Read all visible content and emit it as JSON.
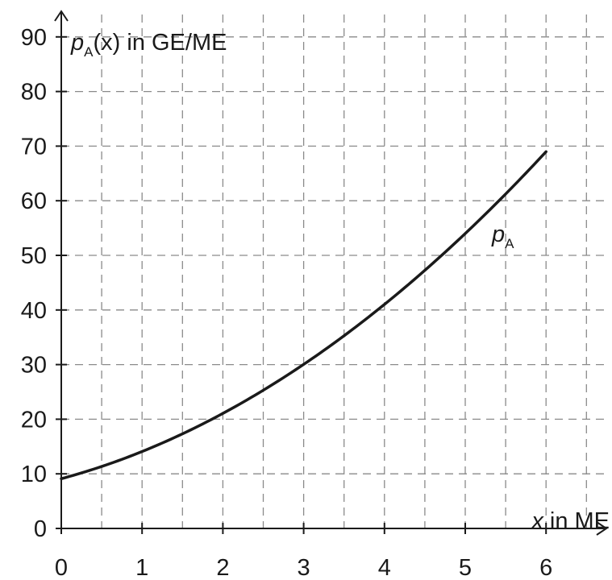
{
  "chart_data": {
    "type": "line",
    "xlabel": {
      "var": "x",
      "unit": " in ME"
    },
    "ylabel": {
      "var": "p",
      "sub": "A",
      "arg": "(x)",
      "unit": " in GE/ME"
    },
    "xlim": [
      0,
      6.8
    ],
    "ylim": [
      0,
      92
    ],
    "grid": true,
    "grid_style": "dashed",
    "x_ticks": [
      0,
      1,
      2,
      3,
      4,
      5,
      6
    ],
    "y_ticks": [
      0,
      10,
      20,
      30,
      40,
      50,
      60,
      70,
      80,
      90
    ],
    "series": [
      {
        "name": {
          "var": "p",
          "sub": "A"
        },
        "color": "#1a1a1a",
        "x": [
          0,
          1,
          2,
          3,
          4,
          5,
          6
        ],
        "y": [
          9,
          14.3,
          21,
          30,
          41,
          54,
          69
        ]
      }
    ]
  }
}
